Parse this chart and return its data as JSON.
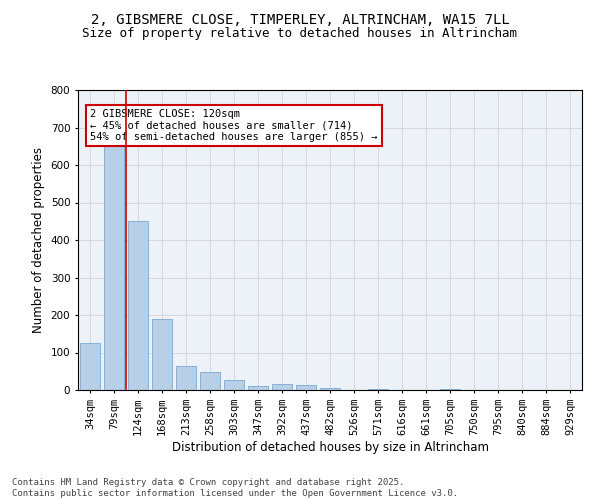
{
  "title_line1": "2, GIBSMERE CLOSE, TIMPERLEY, ALTRINCHAM, WA15 7LL",
  "title_line2": "Size of property relative to detached houses in Altrincham",
  "categories": [
    "34sqm",
    "79sqm",
    "124sqm",
    "168sqm",
    "213sqm",
    "258sqm",
    "303sqm",
    "347sqm",
    "392sqm",
    "437sqm",
    "482sqm",
    "526sqm",
    "571sqm",
    "616sqm",
    "661sqm",
    "705sqm",
    "750sqm",
    "795sqm",
    "840sqm",
    "884sqm",
    "929sqm"
  ],
  "values": [
    126,
    665,
    452,
    190,
    63,
    47,
    27,
    11,
    15,
    14,
    5,
    0,
    4,
    0,
    0,
    3,
    0,
    0,
    0,
    0,
    0
  ],
  "bar_color": "#b8cfe8",
  "bar_edge_color": "#7aaad0",
  "vline_color": "#cc0000",
  "annotation_text": "2 GIBSMERE CLOSE: 120sqm\n← 45% of detached houses are smaller (714)\n54% of semi-detached houses are larger (855) →",
  "annotation_box_color": "#ffffff",
  "annotation_box_edge": "#cc0000",
  "xlabel": "Distribution of detached houses by size in Altrincham",
  "ylabel": "Number of detached properties",
  "ylim": [
    0,
    800
  ],
  "yticks": [
    0,
    100,
    200,
    300,
    400,
    500,
    600,
    700,
    800
  ],
  "grid_color": "#cccccc",
  "bg_color": "#edf2f9",
  "footer_line1": "Contains HM Land Registry data © Crown copyright and database right 2025.",
  "footer_line2": "Contains public sector information licensed under the Open Government Licence v3.0.",
  "title_fontsize": 10,
  "subtitle_fontsize": 9,
  "axis_label_fontsize": 8.5,
  "tick_fontsize": 7.5,
  "annotation_fontsize": 7.5,
  "footer_fontsize": 6.5
}
